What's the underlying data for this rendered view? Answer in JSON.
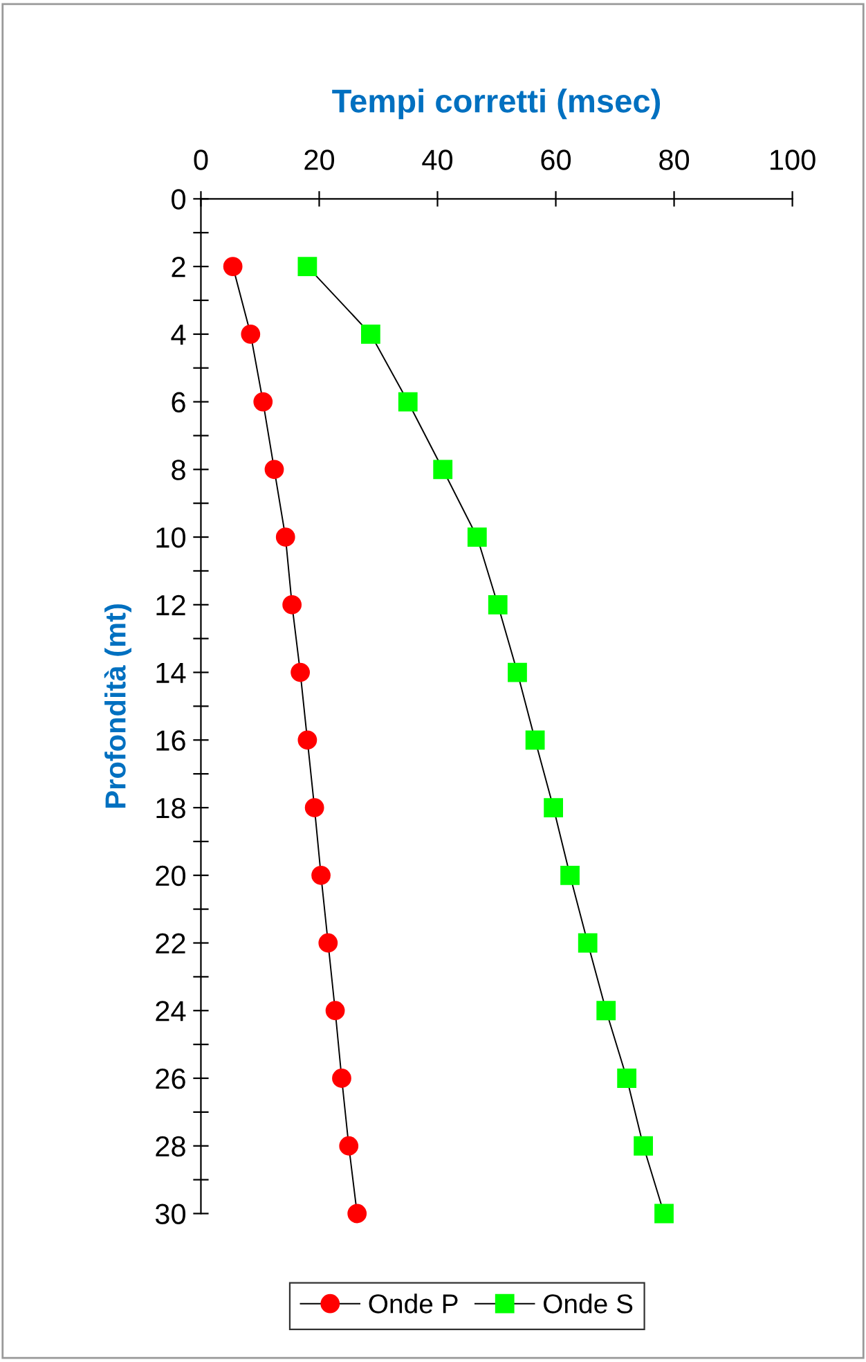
{
  "chart_data": {
    "type": "line",
    "title": "Tempi corretti (msec)",
    "ylabel": "Profondità (mt)",
    "series": [
      {
        "name": "Onde P",
        "color": "#ff0000",
        "marker": "circle",
        "x": [
          5.4,
          8.4,
          10.5,
          12.4,
          14.3,
          15.4,
          16.8,
          18.0,
          19.2,
          20.3,
          21.5,
          22.7,
          23.8,
          25.0,
          26.4
        ],
        "values": [
          2,
          4,
          6,
          8,
          10,
          12,
          14,
          16,
          18,
          20,
          22,
          24,
          26,
          28,
          30
        ]
      },
      {
        "name": "Onde S",
        "color": "#00ff00",
        "marker": "square",
        "x": [
          18.0,
          28.7,
          35.0,
          40.9,
          46.7,
          50.2,
          53.5,
          56.5,
          59.6,
          62.4,
          65.4,
          68.5,
          72.0,
          74.8,
          78.3
        ],
        "values": [
          2,
          4,
          6,
          8,
          10,
          12,
          14,
          16,
          18,
          20,
          22,
          24,
          26,
          28,
          30
        ]
      }
    ],
    "xlim": [
      0,
      100
    ],
    "xticks": [
      0,
      20,
      40,
      60,
      80,
      100
    ],
    "ylim": [
      30,
      0
    ],
    "yticks": [
      0,
      {
        "value": 1,
        "label": null
      },
      2,
      {
        "value": 3,
        "label": null
      },
      4,
      {
        "value": 5,
        "label": null
      },
      6,
      {
        "value": 7,
        "label": null
      },
      8,
      {
        "value": 9,
        "label": null
      },
      10,
      {
        "value": 11,
        "label": null
      },
      12,
      {
        "value": 13,
        "label": null
      },
      14,
      {
        "value": 15,
        "label": null
      },
      16,
      {
        "value": 17,
        "label": null
      },
      18,
      {
        "value": 19,
        "label": null
      },
      20,
      {
        "value": 21,
        "label": null
      },
      22,
      {
        "value": 23,
        "label": null
      },
      24,
      {
        "value": 25,
        "label": null
      },
      26,
      {
        "value": 27,
        "label": null
      },
      28,
      {
        "value": 29,
        "label": null
      },
      30
    ],
    "legend": "bottom",
    "grid": false,
    "line_style": "solid"
  }
}
